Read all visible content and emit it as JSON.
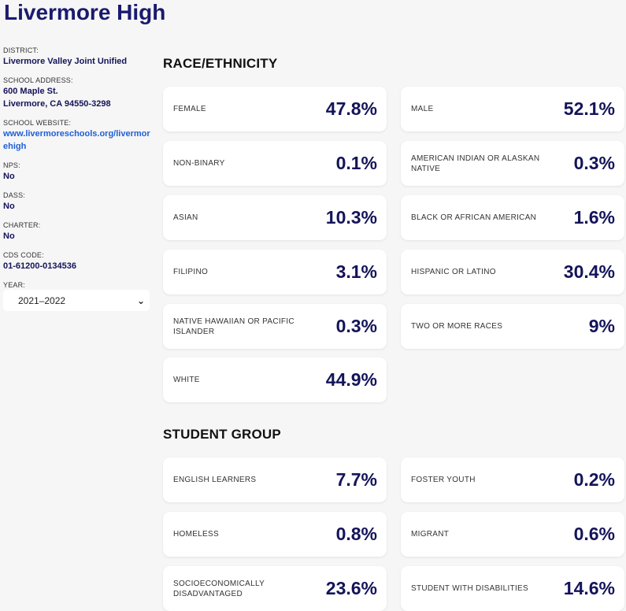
{
  "school": {
    "name": "Livermore High"
  },
  "sidebar": {
    "district_label": "DISTRICT:",
    "district": "Livermore Valley Joint Unified",
    "address_label": "SCHOOL ADDRESS:",
    "address_line1": "600 Maple St.",
    "address_line2": "Livermore, CA 94550-3298",
    "website_label": "SCHOOL WEBSITE:",
    "website": "www.livermoreschools.org/livermorehigh",
    "nps_label": "NPS:",
    "nps": "No",
    "dass_label": "DASS:",
    "dass": "No",
    "charter_label": "CHARTER:",
    "charter": "No",
    "cds_label": "CDS CODE:",
    "cds": "01-61200-0134536",
    "year_label": "YEAR:",
    "year": "2021–2022"
  },
  "race": {
    "title": "RACE/ETHNICITY",
    "items": [
      {
        "label": "FEMALE",
        "value": "47.8%"
      },
      {
        "label": "MALE",
        "value": "52.1%"
      },
      {
        "label": "NON-BINARY",
        "value": "0.1%"
      },
      {
        "label": "AMERICAN INDIAN OR ALASKAN NATIVE",
        "value": "0.3%"
      },
      {
        "label": "ASIAN",
        "value": "10.3%"
      },
      {
        "label": "BLACK OR AFRICAN AMERICAN",
        "value": "1.6%"
      },
      {
        "label": "FILIPINO",
        "value": "3.1%"
      },
      {
        "label": "HISPANIC OR LATINO",
        "value": "30.4%"
      },
      {
        "label": "NATIVE HAWAIIAN OR PACIFIC ISLANDER",
        "value": "0.3%"
      },
      {
        "label": "TWO OR MORE RACES",
        "value": "9%"
      },
      {
        "label": "WHITE",
        "value": "44.9%"
      }
    ]
  },
  "student_group": {
    "title": "STUDENT GROUP",
    "items": [
      {
        "label": "ENGLISH LEARNERS",
        "value": "7.7%"
      },
      {
        "label": "FOSTER YOUTH",
        "value": "0.2%"
      },
      {
        "label": "HOMELESS",
        "value": "0.8%"
      },
      {
        "label": "MIGRANT",
        "value": "0.6%"
      },
      {
        "label": "SOCIOECONOMICALLY DISADVANTAGED",
        "value": "23.6%"
      },
      {
        "label": "STUDENT WITH DISABILITIES",
        "value": "14.6%"
      }
    ]
  }
}
